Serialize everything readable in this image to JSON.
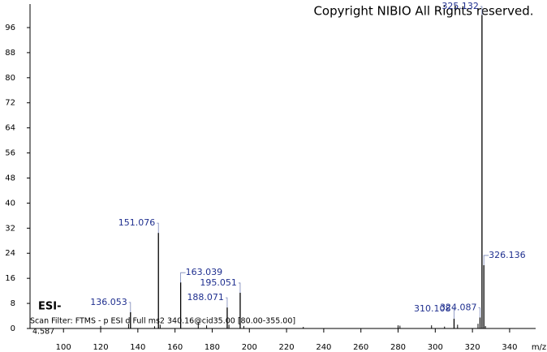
{
  "chart_data": {
    "type": "stick",
    "title": "Copyright NIBIO All Rights reserved.",
    "ionization": "ESI-",
    "scan_filter": "Scan Filter: FTMS - p ESI d Full ms2 340.16@cid35.00 [80.00-355.00]",
    "retention_note": "4.587",
    "x_label": "m/z",
    "color": "#000000",
    "label_color": "#1f2f8f",
    "xlim": [
      82,
      354
    ],
    "ylim": [
      0,
      103.5
    ],
    "xticks": [
      100,
      120,
      140,
      160,
      180,
      200,
      220,
      240,
      260,
      280,
      300,
      320,
      340
    ],
    "yticks": [
      0,
      8,
      16,
      24,
      32,
      40,
      48,
      56,
      64,
      72,
      80,
      88,
      96
    ],
    "peaks": {
      "x": [
        136.053,
        151.076,
        163.039,
        188.071,
        195.051,
        310.108,
        324.087,
        325.132,
        326.136
      ],
      "values": [
        5.2,
        30.5,
        14.7,
        6.7,
        11.4,
        3.1,
        3.5,
        100,
        20.2
      ]
    },
    "minor_peaks": {
      "x": [
        120,
        135,
        149,
        152,
        172.5,
        177,
        189,
        197,
        229,
        280,
        281,
        298,
        305,
        312,
        323,
        327
      ],
      "values": [
        0.8,
        1.5,
        0.7,
        1.2,
        2,
        1,
        1.2,
        0.8,
        0.5,
        1,
        0.9,
        1,
        0.6,
        1.2,
        1.5,
        0.8
      ]
    }
  }
}
